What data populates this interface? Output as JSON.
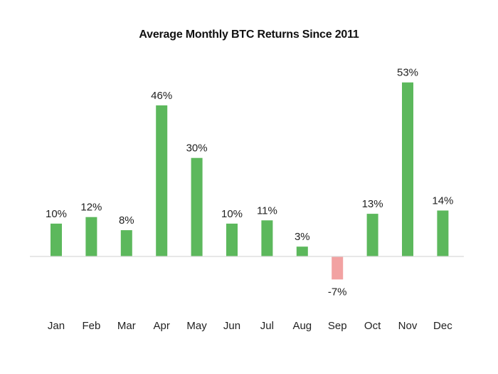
{
  "chart_data": {
    "type": "bar",
    "title": "Average Monthly BTC Returns  Since 2011",
    "xlabel": "",
    "ylabel": "",
    "categories": [
      "Jan",
      "Feb",
      "Mar",
      "Apr",
      "May",
      "Jun",
      "Jul",
      "Aug",
      "Sep",
      "Oct",
      "Nov",
      "Dec"
    ],
    "values": [
      10,
      12,
      8,
      46,
      30,
      10,
      11,
      3,
      -7,
      13,
      53,
      14
    ],
    "data_labels": [
      "10%",
      "12%",
      "8%",
      "46%",
      "30%",
      "10%",
      "11%",
      "3%",
      "-7%",
      "13%",
      "53%",
      "14%"
    ],
    "ylim": [
      -10,
      60
    ],
    "grid": false,
    "legend": "none",
    "colors": {
      "positive": "#5cb85c",
      "negative": "#f2a2a2",
      "baseline": "#d9d9d9",
      "text": "#222222"
    }
  }
}
